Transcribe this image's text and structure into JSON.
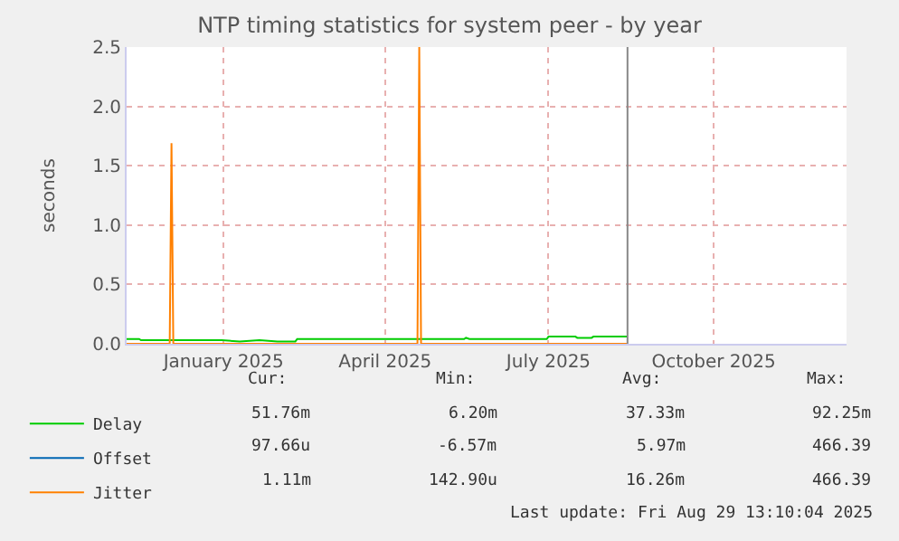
{
  "chart_data": {
    "type": "line",
    "title": "NTP timing statistics for system peer - by year",
    "ylabel": "seconds",
    "xlim": [
      "2024-11-23",
      "2025-12-29"
    ],
    "xticks": [
      {
        "value": "2025-01-16",
        "label": "January 2025"
      },
      {
        "value": "2025-04-16",
        "label": "April 2025"
      },
      {
        "value": "2025-07-16",
        "label": "July 2025"
      },
      {
        "value": "2025-10-16",
        "label": "October 2025"
      }
    ],
    "ylim": [
      0,
      2.5
    ],
    "yticks": [
      {
        "value": 0,
        "label": "0.0"
      },
      0.5,
      {
        "value": 1,
        "label": "1.0"
      },
      1.5,
      {
        "value": 2,
        "label": "2.0"
      },
      2.5
    ],
    "grid": true,
    "legend": "bottom left",
    "series": [
      {
        "name": "Delay",
        "color": "#00cc00",
        "x": [
          "2024-11-23",
          "2024-11-30",
          "2024-12-01",
          "2025-01-15",
          "2025-01-25",
          "2025-02-05",
          "2025-02-15",
          "2025-02-25",
          "2025-02-26",
          "2025-05-30",
          "2025-05-31",
          "2025-06-02",
          "2025-07-15",
          "2025-07-16",
          "2025-07-31",
          "2025-08-01",
          "2025-08-09",
          "2025-08-10",
          "2025-08-29"
        ],
        "values": [
          0.04,
          0.04,
          0.03,
          0.03,
          0.02,
          0.03,
          0.02,
          0.02,
          0.04,
          0.04,
          0.05,
          0.04,
          0.04,
          0.06,
          0.06,
          0.05,
          0.05,
          0.06,
          0.06
        ]
      },
      {
        "name": "Offset",
        "color": "#0066b3"
      },
      {
        "name": "Jitter",
        "color": "#ff8000",
        "x": [
          "2024-11-23",
          "2024-12-17",
          "2024-12-18",
          "2024-12-19",
          "2025-05-04",
          "2025-05-05",
          "2025-05-06",
          "2025-08-29"
        ],
        "values": [
          0.0,
          0.0,
          1.69,
          0.0,
          0.0,
          2.5,
          0.0,
          0.0
        ]
      }
    ],
    "ref_lines": [
      {
        "axis": "x",
        "value": "2025-08-29",
        "label": null,
        "color": "#888888"
      }
    ],
    "annotations": [
      "Cur:",
      "Min:",
      "Avg:",
      "Max:",
      "51.76m",
      "6.20m",
      "37.33m",
      "92.25m",
      "97.66u",
      "-6.57m",
      "5.97m",
      "466.39",
      "1.11m",
      "142.90u",
      "16.26m",
      "466.39",
      "Last update: Fri Aug 29 13:10:04 2025"
    ]
  }
}
